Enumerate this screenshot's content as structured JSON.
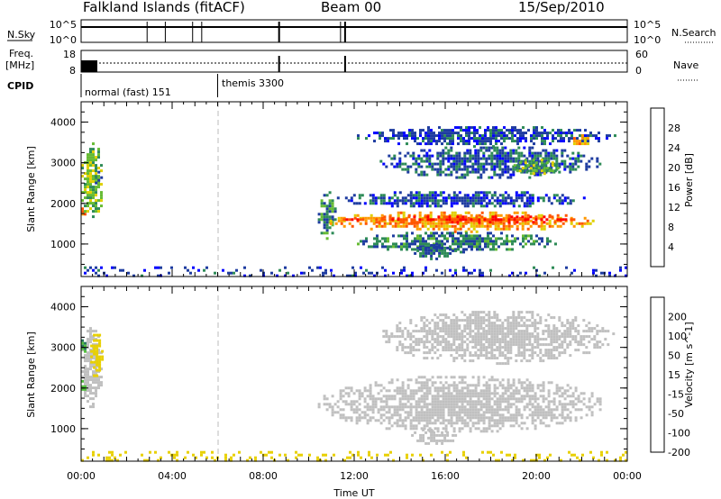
{
  "header": {
    "title": "Falkland Islands (fitACF)",
    "beam": "Beam 00",
    "date": "15/Sep/2010"
  },
  "strip_nsky": {
    "left_label": "N.Sky",
    "right_label": "N.Search",
    "left_ticks": [
      "10^5",
      "10^0"
    ],
    "right_ticks": [
      "10^5",
      "10^0"
    ],
    "spikes": [
      2.9,
      3.7,
      4.9,
      5.3,
      8.7,
      11.4,
      11.6
    ]
  },
  "strip_freq": {
    "left_label_top": "Freq.",
    "left_label_bottom": "[MHz]",
    "right_label": "Nave",
    "left_ticks": [
      "18",
      "8"
    ],
    "right_ticks": [
      "60",
      "0"
    ],
    "spikes": [
      8.7,
      11.6
    ]
  },
  "cpid": {
    "label": "CPID",
    "modes": [
      {
        "name": "normal (fast) 151",
        "start_h": 0,
        "end_h": 6.0
      },
      {
        "name": "themis 3300",
        "start_h": 6.0,
        "end_h": 24
      }
    ]
  },
  "chart_data": [
    {
      "type": "heatmap",
      "name": "Power",
      "xlabel": "",
      "ylabel": "Slant Range [km]",
      "xlim": [
        0,
        24
      ],
      "ylim": [
        200,
        4500
      ],
      "y_ticks": [
        1000,
        2000,
        3000,
        4000
      ],
      "colorbar": {
        "label": "Power [dB]",
        "ticks": [
          "4",
          "8",
          "12",
          "16",
          "20",
          "24",
          "28"
        ],
        "range": [
          0,
          32
        ],
        "colors": [
          "#0000ff",
          "#1e3ca0",
          "#2e8b57",
          "#66bb33",
          "#e0d000",
          "#ff9900",
          "#ff5500",
          "#ff0000"
        ]
      },
      "regions": [
        {
          "x": [
            0,
            1.0
          ],
          "y": [
            1500,
            3500
          ],
          "value": 14
        },
        {
          "x": [
            0.6,
            0.9
          ],
          "y": [
            2400,
            2800
          ],
          "value": 10
        },
        {
          "x": [
            0.0,
            0.3
          ],
          "y": [
            1700,
            1900
          ],
          "value": 24
        },
        {
          "x": [
            10.4,
            11.3
          ],
          "y": [
            1100,
            2300
          ],
          "value": 10
        },
        {
          "x": [
            10.8,
            22.8
          ],
          "y": [
            1300,
            1800
          ],
          "value": 22
        },
        {
          "x": [
            11.5,
            22.5
          ],
          "y": [
            1500,
            1700
          ],
          "value": 28
        },
        {
          "x": [
            12.0,
            21.0
          ],
          "y": [
            800,
            1300
          ],
          "value": 9
        },
        {
          "x": [
            14.5,
            16.5
          ],
          "y": [
            600,
            1000
          ],
          "value": 8
        },
        {
          "x": [
            11.0,
            22.5
          ],
          "y": [
            1900,
            2300
          ],
          "value": 6
        },
        {
          "x": [
            13.0,
            23.0
          ],
          "y": [
            2600,
            3400
          ],
          "value": 7
        },
        {
          "x": [
            12.0,
            23.5
          ],
          "y": [
            3400,
            3900
          ],
          "value": 6
        },
        {
          "x": [
            21.5,
            22.5
          ],
          "y": [
            3400,
            3700
          ],
          "value": 22
        },
        {
          "x": [
            19.0,
            21.0
          ],
          "y": [
            2700,
            3100
          ],
          "value": 14
        },
        {
          "x": [
            0,
            24
          ],
          "y": [
            200,
            450
          ],
          "value": 5
        }
      ]
    },
    {
      "type": "heatmap",
      "name": "Velocity",
      "xlabel": "Time UT",
      "ylabel": "Slant Range [km]",
      "xlim": [
        0,
        24
      ],
      "ylim": [
        200,
        4500
      ],
      "x_ticks": [
        "00:00",
        "04:00",
        "08:00",
        "12:00",
        "16:00",
        "20:00",
        "00:00"
      ],
      "y_ticks": [
        1000,
        2000,
        3000,
        4000
      ],
      "colorbar": {
        "label": "Velocity [m s^-1]",
        "ticks": [
          "200",
          "100",
          "50",
          "15",
          "-15",
          "-50",
          "-100",
          "-200"
        ],
        "colors": [
          "#1010d0",
          "#2a7a60",
          "#55c040",
          "#c0c0c0",
          "#e8d000",
          "#ff9900",
          "#ff5500",
          "#ff0000"
        ]
      },
      "regions": [
        {
          "x": [
            0,
            1.0
          ],
          "y": [
            1500,
            3500
          ],
          "value": 0
        },
        {
          "x": [
            0.4,
            1.0
          ],
          "y": [
            2200,
            3400
          ],
          "value": -40
        },
        {
          "x": [
            0,
            0.2
          ],
          "y": [
            1800,
            2200
          ],
          "value": 50
        },
        {
          "x": [
            0,
            0.2
          ],
          "y": [
            2800,
            3200
          ],
          "value": 50
        },
        {
          "x": [
            10.4,
            23.0
          ],
          "y": [
            900,
            2300
          ],
          "value": 0
        },
        {
          "x": [
            14.5,
            16.5
          ],
          "y": [
            600,
            1000
          ],
          "value": 0
        },
        {
          "x": [
            13.0,
            23.5
          ],
          "y": [
            2600,
            3900
          ],
          "value": 0
        },
        {
          "x": [
            0,
            24
          ],
          "y": [
            200,
            450
          ],
          "value": -30
        }
      ]
    }
  ]
}
